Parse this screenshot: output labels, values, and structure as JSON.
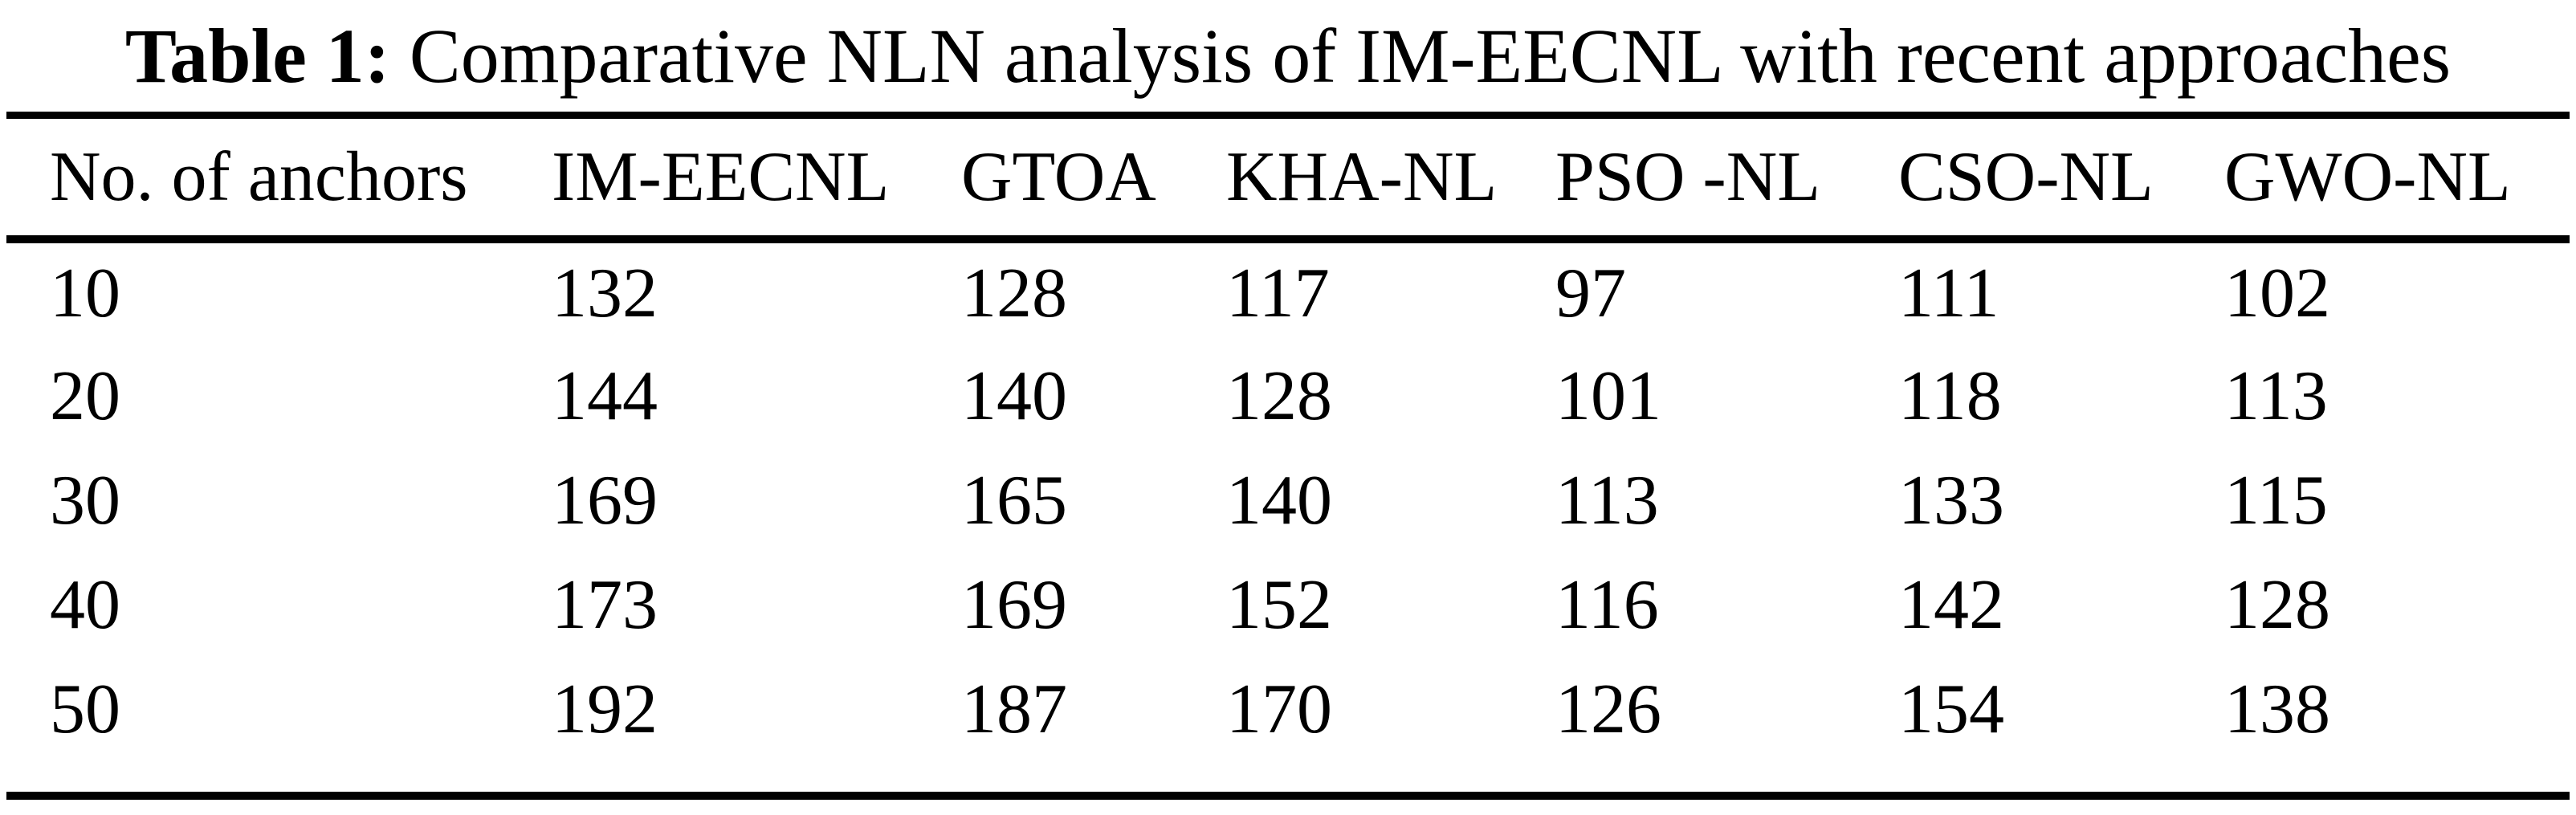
{
  "page": {
    "background": "#ffffff",
    "text_color": "#000000"
  },
  "title": {
    "label": "Table 1:",
    "text": " Comparative NLN analysis of IM-EECNL with recent approaches"
  },
  "table": {
    "columns": [
      "No. of anchors",
      "IM-EECNL",
      "GTOA",
      "KHA-NL",
      "PSO -NL",
      "CSO-NL",
      "GWO-NL"
    ],
    "rows": [
      [
        "10",
        "132",
        "128",
        "117",
        "97",
        "111",
        "102"
      ],
      [
        "20",
        "144",
        "140",
        "128",
        "101",
        "118",
        "113"
      ],
      [
        "30",
        "169",
        "165",
        "140",
        "113",
        "133",
        "115"
      ],
      [
        "40",
        "173",
        "169",
        "152",
        "116",
        "142",
        "128"
      ],
      [
        "50",
        "192",
        "187",
        "170",
        "126",
        "154",
        "138"
      ]
    ]
  }
}
